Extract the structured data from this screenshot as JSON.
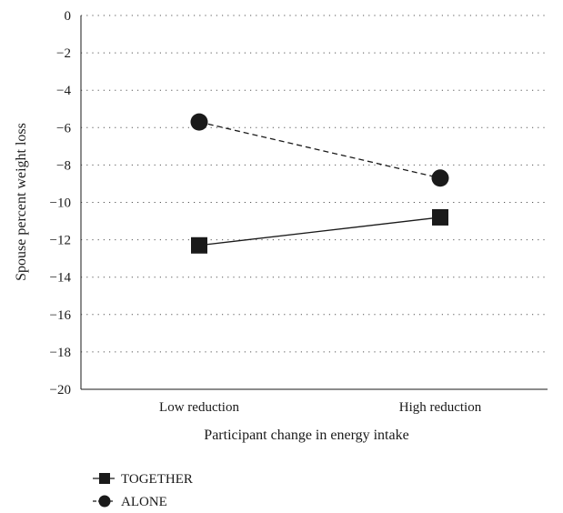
{
  "chart_data": {
    "type": "line",
    "categories": [
      "Low reduction",
      "High reduction"
    ],
    "series": [
      {
        "name": "TOGETHER",
        "values": [
          -12.3,
          -10.8
        ],
        "marker": "square",
        "line_style": "solid",
        "color": "#1a1a1a"
      },
      {
        "name": "ALONE",
        "values": [
          -5.7,
          -8.7
        ],
        "marker": "circle",
        "line_style": "dashed",
        "color": "#1a1a1a"
      }
    ],
    "xlabel": "Participant change in energy intake",
    "ylabel": "Spouse percent weight loss",
    "ylim": [
      -20,
      0
    ],
    "yticks": [
      0,
      -2,
      -4,
      -6,
      -8,
      -10,
      -12,
      -14,
      -16,
      -18,
      -20
    ],
    "ytick_labels": [
      "0",
      "−2",
      "−4",
      "−6",
      "−8",
      "−10",
      "−12",
      "−14",
      "−16",
      "−18",
      "−20"
    ],
    "grid": "horizontal dotted",
    "legend_position": "bottom-left"
  }
}
